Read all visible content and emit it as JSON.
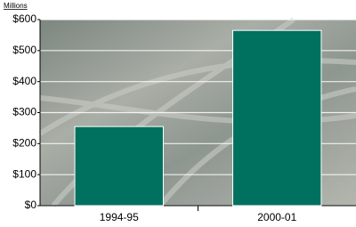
{
  "chart_data": {
    "type": "bar",
    "y_label": "Millions",
    "categories": [
      "1994-95",
      "2000-01"
    ],
    "values": [
      255,
      565
    ],
    "color": "#00705f",
    "ylim": [
      0,
      600
    ],
    "yticks": [
      {
        "value": 0,
        "label": "$0"
      },
      {
        "value": 100,
        "label": "$100"
      },
      {
        "value": 200,
        "label": "$200"
      },
      {
        "value": 300,
        "label": "$300"
      },
      {
        "value": 400,
        "label": "$400"
      },
      {
        "value": 500,
        "label": "$500"
      },
      {
        "value": 600,
        "label": "$600"
      }
    ],
    "grid": true
  }
}
